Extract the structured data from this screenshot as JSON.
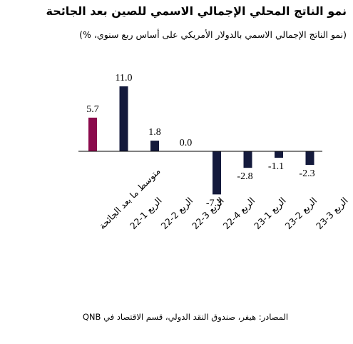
{
  "title": "نمو الناتج المحلي الإجمالي الاسمي للصين بعد الجائحة",
  "subtitle": "(نمو الناتج الإجمالي الاسمي بالدولار الأمريكي على أساس ربع سنوي، %)",
  "source": "المصادر: هيفر، صندوق النقد الدولي، قسم الاقتصاد في QNB",
  "colors": {
    "average": "#8b0a4c",
    "quarters": "#141a3c",
    "axis": "#000000"
  },
  "chart_data": {
    "type": "bar",
    "title": "نمو الناتج المحلي الإجمالي الاسمي للصين بعد الجائحة",
    "subtitle": "(نمو الناتج الإجمالي الاسمي بالدولار الأمريكي على أساس ربع سنوي، %)",
    "categories": [
      "متوسط ما بعد الجائحة",
      "الربع 1-22",
      "الربع 2-22",
      "الربع 3-22",
      "الربع 4-22",
      "الربع 1-23",
      "الربع 2-23",
      "الربع 3-23"
    ],
    "values": [
      5.7,
      11.0,
      1.8,
      0.0,
      -7.3,
      -2.8,
      -1.1,
      -2.3
    ],
    "value_labels": [
      "5.7",
      "11.0",
      "1.8",
      "0.0",
      "-7.3",
      "-2.8",
      "-1.1",
      "-2.3"
    ],
    "bar_colors": [
      "#8b0a4c",
      "#141a3c",
      "#141a3c",
      "#141a3c",
      "#141a3c",
      "#141a3c",
      "#141a3c",
      "#141a3c"
    ],
    "ylim": [
      -7.3,
      11.0
    ],
    "grid": false,
    "legend": "none"
  }
}
